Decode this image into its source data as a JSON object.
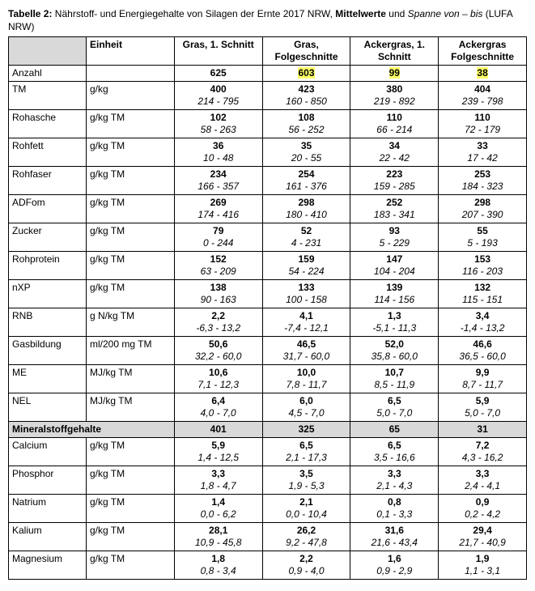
{
  "caption": {
    "label": "Tabelle 2:",
    "text_before_bold": " Nährstoff- und Energiegehalte von Silagen der Ernte 2017 NRW, ",
    "bold_word": "Mittelwerte",
    "text_mid": " und ",
    "italic_word": "Spanne von – bis",
    "text_after": " (LUFA NRW)"
  },
  "headers": {
    "blank": "",
    "unit": "Einheit",
    "cols": [
      "Gras,\n1. Schnitt",
      "Gras,\nFolgeschnitte",
      "Ackergras, 1.\nSchnitt",
      "Ackergras\nFolgeschnitte"
    ]
  },
  "rows": [
    {
      "label": "Anzahl",
      "unit": "",
      "vals": [
        {
          "m": "625"
        },
        {
          "m": "603",
          "hl": true
        },
        {
          "m": "99",
          "hl": true
        },
        {
          "m": "38",
          "hl": true
        }
      ]
    },
    {
      "label": "TM",
      "unit": "g/kg",
      "vals": [
        {
          "m": "400",
          "r": "214 - 795"
        },
        {
          "m": "423",
          "r": "160 - 850"
        },
        {
          "m": "380",
          "r": "219 - 892"
        },
        {
          "m": "404",
          "r": "239 - 798"
        }
      ]
    },
    {
      "label": "Rohasche",
      "unit": "g/kg TM",
      "vals": [
        {
          "m": "102",
          "r": "58 - 263"
        },
        {
          "m": "108",
          "r": "56 - 252"
        },
        {
          "m": "110",
          "r": "66 - 214"
        },
        {
          "m": "110",
          "r": "72 - 179"
        }
      ]
    },
    {
      "label": "Rohfett",
      "unit": "g/kg TM",
      "vals": [
        {
          "m": "36",
          "r": "10 - 48"
        },
        {
          "m": "35",
          "r": "20 - 55"
        },
        {
          "m": "34",
          "r": "22 - 42"
        },
        {
          "m": "33",
          "r": "17 - 42"
        }
      ]
    },
    {
      "label": "Rohfaser",
      "unit": "g/kg TM",
      "vals": [
        {
          "m": "234",
          "r": "166 - 357"
        },
        {
          "m": "254",
          "r": "161 - 376"
        },
        {
          "m": "223",
          "r": "159 - 285"
        },
        {
          "m": "253",
          "r": "184 - 323"
        }
      ]
    },
    {
      "label": "ADFom",
      "unit": "g/kg TM",
      "vals": [
        {
          "m": "269",
          "r": "174 - 416"
        },
        {
          "m": "298",
          "r": "180 - 410"
        },
        {
          "m": "252",
          "r": "183 - 341"
        },
        {
          "m": "298",
          "r": "207 - 390"
        }
      ]
    },
    {
      "label": "Zucker",
      "unit": "g/kg TM",
      "vals": [
        {
          "m": "79",
          "r": "0 - 244"
        },
        {
          "m": "52",
          "r": "4 - 231"
        },
        {
          "m": "93",
          "r": "5 - 229"
        },
        {
          "m": "55",
          "r": "5 - 193"
        }
      ]
    },
    {
      "label": "Rohprotein",
      "unit": "g/kg TM",
      "vals": [
        {
          "m": "152",
          "r": "63 - 209"
        },
        {
          "m": "159",
          "r": "54 - 224"
        },
        {
          "m": "147",
          "r": "104 - 204"
        },
        {
          "m": "153",
          "r": "116 - 203"
        }
      ]
    },
    {
      "label": "nXP",
      "unit": "g/kg TM",
      "vals": [
        {
          "m": "138",
          "r": "90 - 163"
        },
        {
          "m": "133",
          "r": "100 - 158"
        },
        {
          "m": "139",
          "r": "114 - 156"
        },
        {
          "m": "132",
          "r": "115 - 151"
        }
      ]
    },
    {
      "label": "RNB",
      "unit": "g N/kg TM",
      "vals": [
        {
          "m": "2,2",
          "r": "-6,3 - 13,2"
        },
        {
          "m": "4,1",
          "r": "-7,4 - 12,1"
        },
        {
          "m": "1,3",
          "r": "-5,1 - 11,3"
        },
        {
          "m": "3,4",
          "r": "-1,4 - 13,2"
        }
      ]
    },
    {
      "label": "Gasbildung",
      "unit": "ml/200 mg TM",
      "vals": [
        {
          "m": "50,6",
          "r": "32,2 - 60,0"
        },
        {
          "m": "46,5",
          "r": "31,7 - 60,0"
        },
        {
          "m": "52,0",
          "r": "35,8 - 60,0"
        },
        {
          "m": "46,6",
          "r": "36,5 - 60,0"
        }
      ]
    },
    {
      "label": "ME",
      "unit": "MJ/kg TM",
      "vals": [
        {
          "m": "10,6",
          "r": "7,1 - 12,3"
        },
        {
          "m": "10,0",
          "r": "7,8 - 11,7"
        },
        {
          "m": "10,7",
          "r": "8,5 - 11,9"
        },
        {
          "m": "9,9",
          "r": "8,7 - 11,7"
        }
      ]
    },
    {
      "label": "NEL",
      "unit": "MJ/kg TM",
      "vals": [
        {
          "m": "6,4",
          "r": "4,0 - 7,0"
        },
        {
          "m": "6,0",
          "r": "4,5 - 7,0"
        },
        {
          "m": "6,5",
          "r": "5,0 - 7,0"
        },
        {
          "m": "5,9",
          "r": "5,0 - 7,0"
        }
      ]
    },
    {
      "section": true,
      "label": "Mineralstoffgehalte",
      "nums": [
        "401",
        "325",
        "65",
        "31"
      ]
    },
    {
      "label": "Calcium",
      "unit": "g/kg TM",
      "vals": [
        {
          "m": "5,9",
          "r": "1,4 - 12,5"
        },
        {
          "m": "6,5",
          "r": "2,1 - 17,3"
        },
        {
          "m": "6,5",
          "r": "3,5 - 16,6"
        },
        {
          "m": "7,2",
          "r": "4,3 - 16,2"
        }
      ]
    },
    {
      "label": "Phosphor",
      "unit": "g/kg TM",
      "vals": [
        {
          "m": "3,3",
          "r": "1,8 - 4,7"
        },
        {
          "m": "3,5",
          "r": "1,9 - 5,3"
        },
        {
          "m": "3,3",
          "r": "2,1 - 4,3"
        },
        {
          "m": "3,3",
          "r": "2,4 - 4,1"
        }
      ]
    },
    {
      "label": "Natrium",
      "unit": "g/kg TM",
      "vals": [
        {
          "m": "1,4",
          "r": "0,0 - 6,2"
        },
        {
          "m": "2,1",
          "r": "0,0 - 10,4"
        },
        {
          "m": "0,8",
          "r": "0,1 - 3,3"
        },
        {
          "m": "0,9",
          "r": "0,2 - 4,2"
        }
      ]
    },
    {
      "label": "Kalium",
      "unit": "g/kg TM",
      "vals": [
        {
          "m": "28,1",
          "r": "10,9 - 45,8"
        },
        {
          "m": "26,2",
          "r": "9,2 - 47,8"
        },
        {
          "m": "31,6",
          "r": "21,6 - 43,4"
        },
        {
          "m": "29,4",
          "r": "21,7 - 40,9"
        }
      ]
    },
    {
      "label": "Magnesium",
      "unit": "g/kg TM",
      "vals": [
        {
          "m": "1,8",
          "r": "0,8 - 3,4"
        },
        {
          "m": "2,2",
          "r": "0,9 - 4,0"
        },
        {
          "m": "1,6",
          "r": "0,9 - 2,9"
        },
        {
          "m": "1,9",
          "r": "1,1 - 3,1"
        }
      ]
    }
  ]
}
